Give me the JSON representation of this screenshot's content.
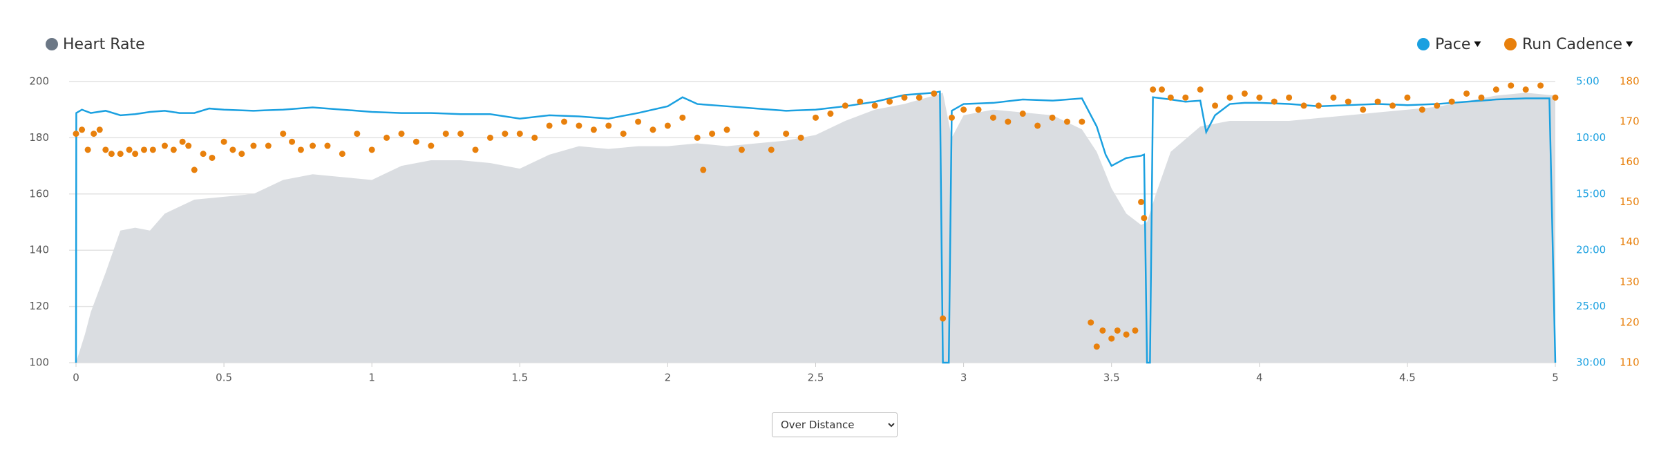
{
  "chart_data": {
    "type": "combo",
    "xlim": [
      0,
      5
    ],
    "xticks": [
      0,
      0.5,
      1,
      1.5,
      2,
      2.5,
      3,
      3.5,
      4,
      4.5,
      5
    ],
    "ylim": [
      100,
      200
    ],
    "yticks": [
      100,
      120,
      140,
      160,
      180,
      200
    ],
    "y2lim": [
      5,
      30
    ],
    "y2_inverted": true,
    "y2ticks": [
      {
        "value": 5,
        "label": "5:00"
      },
      {
        "value": 10,
        "label": "10:00"
      },
      {
        "value": 15,
        "label": "15:00"
      },
      {
        "value": 20,
        "label": "20:00"
      },
      {
        "value": 25,
        "label": "25:00"
      },
      {
        "value": 30,
        "label": "30:00"
      }
    ],
    "y3lim": [
      110,
      180
    ],
    "y3ticks": [
      110,
      120,
      130,
      140,
      150,
      160,
      170,
      180
    ],
    "grid": true,
    "series": [
      {
        "name": "Heart Rate",
        "type": "area",
        "axis": "y",
        "color": "#dadde1",
        "legend_color": "#6b7785",
        "x": [
          0,
          0.03,
          0.05,
          0.1,
          0.15,
          0.2,
          0.25,
          0.3,
          0.4,
          0.5,
          0.6,
          0.7,
          0.8,
          0.9,
          1.0,
          1.1,
          1.2,
          1.3,
          1.4,
          1.5,
          1.6,
          1.7,
          1.8,
          1.9,
          2.0,
          2.1,
          2.2,
          2.3,
          2.4,
          2.5,
          2.6,
          2.7,
          2.8,
          2.9,
          2.93,
          2.96,
          3.0,
          3.1,
          3.2,
          3.3,
          3.4,
          3.45,
          3.5,
          3.55,
          3.6,
          3.62,
          3.65,
          3.7,
          3.8,
          3.9,
          4.0,
          4.1,
          4.2,
          4.3,
          4.4,
          4.5,
          4.6,
          4.7,
          4.8,
          4.9,
          5.0
        ],
        "values": [
          100,
          110,
          118,
          132,
          147,
          148,
          147,
          153,
          158,
          159,
          160,
          165,
          167,
          166,
          165,
          170,
          172,
          172,
          171,
          169,
          174,
          177,
          176,
          177,
          177,
          178,
          177,
          178,
          179,
          181,
          186,
          190,
          192,
          195,
          196,
          180,
          188,
          190,
          189,
          188,
          183,
          175,
          162,
          153,
          149,
          150,
          160,
          175,
          184,
          186,
          186,
          186,
          187,
          188,
          189,
          190,
          191,
          193,
          195,
          196,
          195
        ]
      },
      {
        "name": "Pace",
        "type": "line",
        "axis": "y2",
        "color": "#1aa0e0",
        "x": [
          0,
          0.001,
          0.02,
          0.05,
          0.1,
          0.15,
          0.2,
          0.25,
          0.3,
          0.35,
          0.4,
          0.45,
          0.5,
          0.6,
          0.7,
          0.8,
          0.9,
          1.0,
          1.1,
          1.2,
          1.3,
          1.4,
          1.5,
          1.6,
          1.7,
          1.8,
          1.9,
          2.0,
          2.05,
          2.1,
          2.2,
          2.3,
          2.4,
          2.5,
          2.6,
          2.7,
          2.8,
          2.9,
          2.92,
          2.93,
          2.95,
          2.96,
          3.0,
          3.1,
          3.2,
          3.3,
          3.4,
          3.42,
          3.45,
          3.48,
          3.5,
          3.55,
          3.6,
          3.61,
          3.62,
          3.63,
          3.64,
          3.7,
          3.75,
          3.8,
          3.82,
          3.85,
          3.9,
          3.95,
          4.0,
          4.1,
          4.2,
          4.3,
          4.4,
          4.5,
          4.6,
          4.7,
          4.8,
          4.9,
          4.98,
          5.0
        ],
        "values": [
          30,
          7.8,
          7.5,
          7.8,
          7.6,
          8.0,
          7.9,
          7.7,
          7.6,
          7.8,
          7.8,
          7.4,
          7.5,
          7.6,
          7.5,
          7.3,
          7.5,
          7.7,
          7.8,
          7.8,
          7.9,
          7.9,
          8.3,
          8.0,
          8.1,
          8.3,
          7.8,
          7.2,
          6.4,
          7.0,
          7.2,
          7.4,
          7.6,
          7.5,
          7.2,
          6.8,
          6.2,
          6.0,
          5.9,
          30,
          30,
          7.6,
          7.0,
          6.9,
          6.6,
          6.7,
          6.5,
          7.5,
          9.0,
          11.5,
          12.5,
          11.8,
          11.6,
          11.5,
          30,
          30,
          6.4,
          6.6,
          6.8,
          6.7,
          9.5,
          8.0,
          7.0,
          6.9,
          6.9,
          7.0,
          7.2,
          7.1,
          7.0,
          7.1,
          7.0,
          6.8,
          6.6,
          6.5,
          6.5,
          30
        ]
      },
      {
        "name": "Run Cadence",
        "type": "scatter",
        "axis": "y3",
        "color": "#e8800c",
        "x": [
          0,
          0.02,
          0.04,
          0.06,
          0.08,
          0.1,
          0.12,
          0.15,
          0.18,
          0.2,
          0.23,
          0.26,
          0.3,
          0.33,
          0.36,
          0.38,
          0.4,
          0.43,
          0.46,
          0.5,
          0.53,
          0.56,
          0.6,
          0.65,
          0.7,
          0.73,
          0.76,
          0.8,
          0.85,
          0.9,
          0.95,
          1.0,
          1.05,
          1.1,
          1.15,
          1.2,
          1.25,
          1.3,
          1.35,
          1.4,
          1.45,
          1.5,
          1.55,
          1.6,
          1.65,
          1.7,
          1.75,
          1.8,
          1.85,
          1.9,
          1.95,
          2.0,
          2.05,
          2.1,
          2.12,
          2.15,
          2.2,
          2.25,
          2.3,
          2.35,
          2.4,
          2.45,
          2.5,
          2.55,
          2.6,
          2.65,
          2.7,
          2.75,
          2.8,
          2.85,
          2.9,
          2.93,
          2.96,
          3.0,
          3.05,
          3.1,
          3.15,
          3.2,
          3.25,
          3.3,
          3.35,
          3.4,
          3.43,
          3.45,
          3.47,
          3.5,
          3.52,
          3.55,
          3.58,
          3.6,
          3.61,
          3.64,
          3.67,
          3.7,
          3.75,
          3.8,
          3.85,
          3.9,
          3.95,
          4.0,
          4.05,
          4.1,
          4.15,
          4.2,
          4.25,
          4.3,
          4.35,
          4.4,
          4.45,
          4.5,
          4.55,
          4.6,
          4.65,
          4.7,
          4.75,
          4.8,
          4.85,
          4.9,
          4.95,
          5.0
        ],
        "values": [
          167,
          168,
          163,
          167,
          168,
          163,
          162,
          162,
          163,
          162,
          163,
          163,
          164,
          163,
          165,
          164,
          158,
          162,
          161,
          165,
          163,
          162,
          164,
          164,
          167,
          165,
          163,
          164,
          164,
          162,
          167,
          163,
          166,
          167,
          165,
          164,
          167,
          167,
          163,
          166,
          167,
          167,
          166,
          169,
          170,
          169,
          168,
          169,
          167,
          170,
          168,
          169,
          171,
          166,
          158,
          167,
          168,
          163,
          167,
          163,
          167,
          166,
          171,
          172,
          174,
          175,
          174,
          175,
          176,
          176,
          177,
          121,
          171,
          173,
          173,
          171,
          170,
          172,
          169,
          171,
          170,
          170,
          120,
          114,
          118,
          116,
          118,
          117,
          118,
          150,
          146,
          178,
          178,
          176,
          176,
          178,
          174,
          176,
          177,
          176,
          175,
          176,
          174,
          174,
          176,
          175,
          173,
          175,
          174,
          176,
          173,
          174,
          175,
          177,
          176,
          178,
          179,
          178,
          179,
          176
        ]
      }
    ]
  },
  "controls": {
    "view_select": "Over Distance"
  }
}
